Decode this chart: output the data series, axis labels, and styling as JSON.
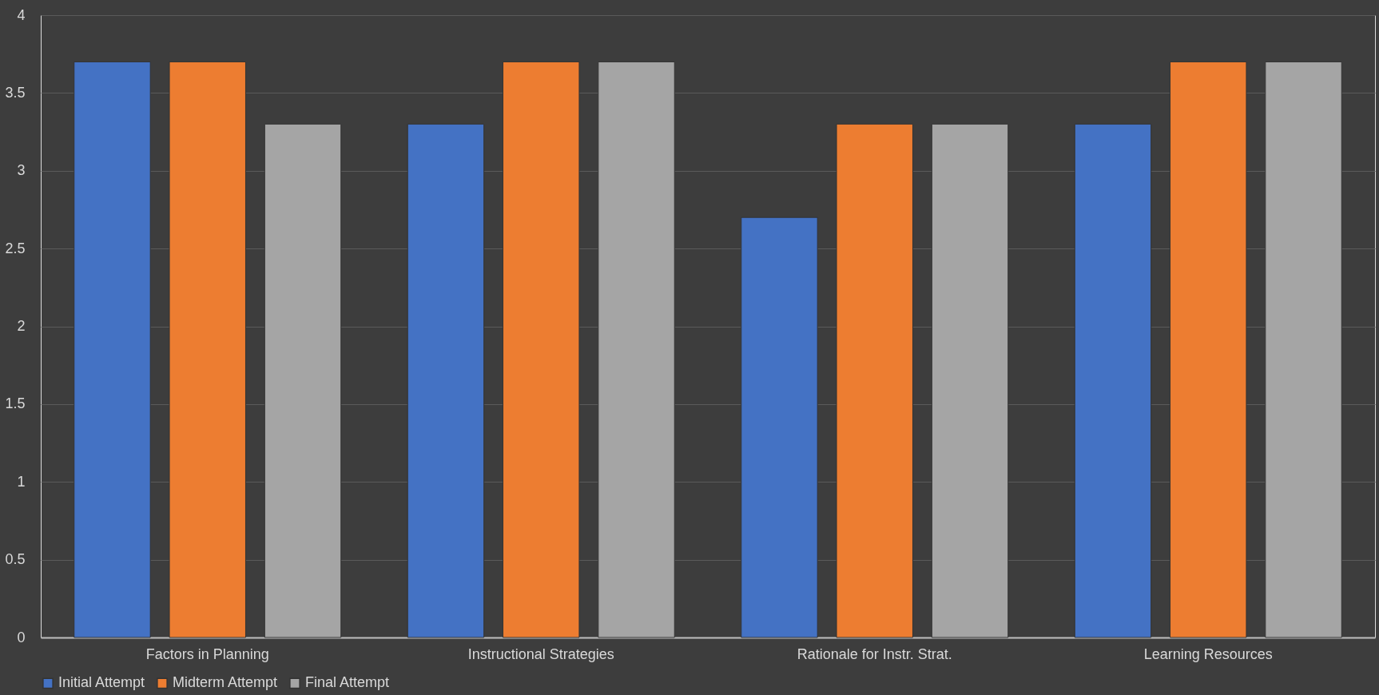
{
  "chart_data": {
    "type": "bar",
    "categories": [
      "Factors in Planning",
      "Instructional Strategies",
      "Rationale for Instr. Strat.",
      "Learning Resources"
    ],
    "series": [
      {
        "name": "Initial Attempt",
        "color": "#4472c4",
        "values": [
          3.7,
          3.3,
          2.7,
          3.3
        ]
      },
      {
        "name": "Midterm Attempt",
        "color": "#ed7d31",
        "values": [
          3.7,
          3.7,
          3.3,
          3.7
        ]
      },
      {
        "name": "Final Attempt",
        "color": "#a5a5a5",
        "values": [
          3.3,
          3.7,
          3.3,
          3.7
        ]
      }
    ],
    "ylim": [
      0,
      4
    ],
    "yticks": [
      0,
      0.5,
      1,
      1.5,
      2,
      2.5,
      3,
      3.5,
      4
    ],
    "grid": "y",
    "legend": "bottom"
  }
}
